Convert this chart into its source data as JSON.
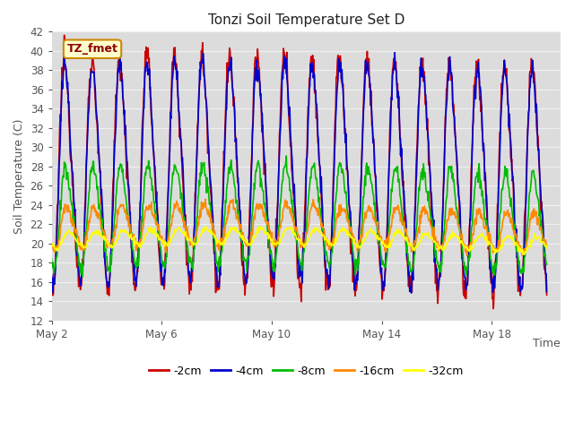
{
  "title": "Tonzi Soil Temperature Set D",
  "ylabel": "Soil Temperature (C)",
  "xlabel": "Time",
  "ylim": [
    12,
    42
  ],
  "yticks": [
    12,
    14,
    16,
    18,
    20,
    22,
    24,
    26,
    28,
    30,
    32,
    34,
    36,
    38,
    40,
    42
  ],
  "xtick_labels": [
    "May 2",
    "May 6",
    "May 10",
    "May 14",
    "May 18"
  ],
  "xtick_positions": [
    1,
    5,
    9,
    13,
    17
  ],
  "legend_label": "TZ_fmet",
  "series": [
    {
      "label": "-2cm",
      "color": "#cc0000",
      "amplitude": 11.5,
      "mean": 27.0,
      "phase": 0.0,
      "noise": 0.8
    },
    {
      "label": "-4cm",
      "color": "#0000cc",
      "amplitude": 11.0,
      "mean": 27.0,
      "phase": 0.08,
      "noise": 0.6
    },
    {
      "label": "-8cm",
      "color": "#00bb00",
      "amplitude": 5.0,
      "mean": 22.5,
      "phase": 0.25,
      "noise": 0.4
    },
    {
      "label": "-16cm",
      "color": "#ff8800",
      "amplitude": 2.0,
      "mean": 21.5,
      "phase": 0.5,
      "noise": 0.3
    },
    {
      "label": "-32cm",
      "color": "#ffff00",
      "amplitude": 0.8,
      "mean": 20.3,
      "phase": 0.9,
      "noise": 0.15
    }
  ],
  "n_days": 18,
  "samples_per_day": 48,
  "start_day": 1,
  "plot_bg": "#dcdcdc",
  "grid_color": "#f0f0f0",
  "linewidth": 1.2,
  "figsize": [
    6.4,
    4.8
  ],
  "dpi": 100
}
